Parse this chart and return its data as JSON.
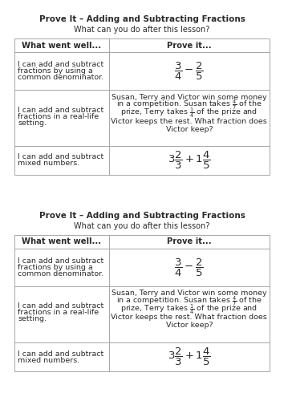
{
  "title": "Prove It – Adding and Subtracting Fractions",
  "subtitle": "What can you do after this lesson?",
  "col1_header": "What went well...",
  "col2_header": "Prove it...",
  "rows": [
    {
      "col1": "I can add and subtract\nfractions by using a\ncommon denominator.",
      "col2_type": "math",
      "col2_math": "$\\dfrac{3}{4} - \\dfrac{2}{5}$"
    },
    {
      "col1": "I can add and subtract\nfractions in a real-life\nsetting.",
      "col2_type": "text_with_math",
      "col2_lines": [
        [
          "Susan, Terry and Victor win some money"
        ],
        [
          "in a competition. Susan takes $\\frac{4}{7}$ of the"
        ],
        [
          "prize, Terry takes $\\frac{1}{4}$ of the prize and"
        ],
        [
          "Victor keeps the rest. What fraction does"
        ],
        [
          "Victor keep?"
        ]
      ]
    },
    {
      "col1": "I can add and subtract\nmixed numbers.",
      "col2_type": "math",
      "col2_math": "$3\\dfrac{2}{3} + 1\\dfrac{4}{5}$"
    }
  ],
  "background": "#ffffff",
  "text_color": "#2b2b2b",
  "line_color": "#999999",
  "title_fontsize": 7.5,
  "subtitle_fontsize": 7.0,
  "header_fontsize": 7.2,
  "body_fontsize": 6.8,
  "math_fontsize": 9.5,
  "small_math_fontsize": 7.5
}
